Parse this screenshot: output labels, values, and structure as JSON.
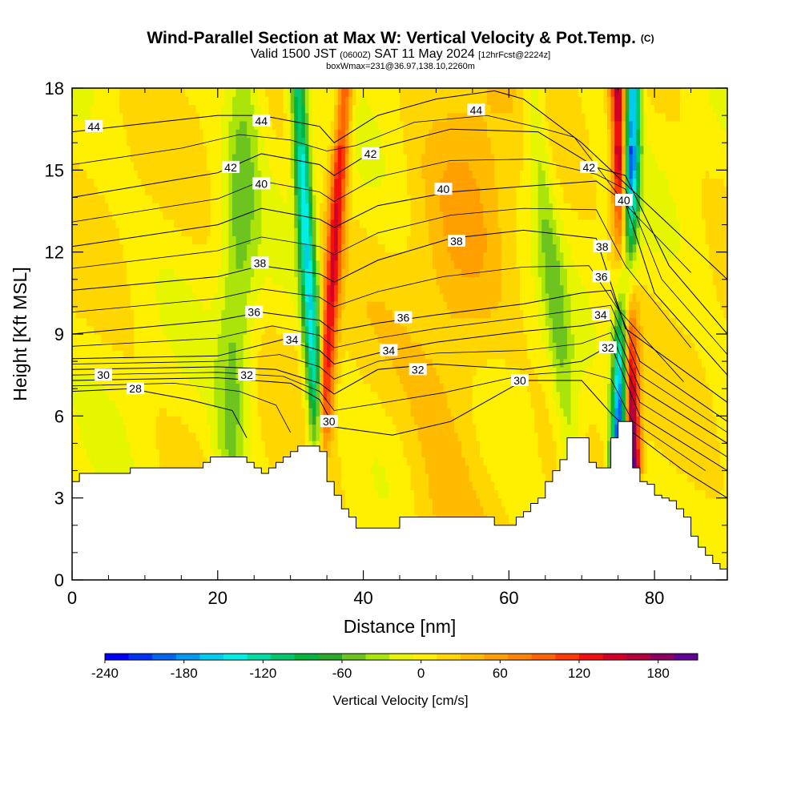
{
  "chart_data": {
    "type": "heatmap",
    "title": "Wind-Parallel Section at Max W: Vertical Velocity & Pot.Temp.",
    "title_mark": "(C)",
    "subtitle_main": "Valid 1500 JST",
    "subtitle_utc": "(0600Z)",
    "subtitle_date": "SAT 11 May 2024",
    "subtitle_fcst": "[12hrFcst@2224z]",
    "subtitle2": "boxWmax=231@36.97,138.10,2260m",
    "xlabel": "Distance [nm]",
    "ylabel": "Height [Kft MSL]",
    "xlim": [
      0,
      90
    ],
    "ylim": [
      0,
      18
    ],
    "x_ticks": [
      "0",
      "20",
      "40",
      "60",
      "80"
    ],
    "y_ticks": [
      "0",
      "3",
      "6",
      "9",
      "12",
      "15",
      "18"
    ],
    "colorbar": {
      "label": "Vertical Velocity [cm/s]",
      "range": [
        -240,
        210
      ],
      "tick_labels": [
        "-240",
        "-180",
        "-120",
        "-60",
        "0",
        "60",
        "120",
        "180"
      ],
      "colors": [
        "#0000ff",
        "#0033f5",
        "#0066f0",
        "#0099f0",
        "#00ccf0",
        "#00eee6",
        "#00dca6",
        "#00c86e",
        "#00b43c",
        "#2ca82a",
        "#6ec41e",
        "#aae40a",
        "#e6f500",
        "#fff000",
        "#ffd600",
        "#ffbb00",
        "#ffa000",
        "#ff8400",
        "#ff6400",
        "#ff3a00",
        "#f01010",
        "#d20028",
        "#b4003c",
        "#8c0064",
        "#640096"
      ]
    },
    "updrafts": [
      {
        "name": "",
        "peak_w": 130,
        "x_base": 34,
        "x_top": 37.5
      },
      {
        "name": "",
        "peak_w": 210,
        "x_base": 77,
        "x_top": 75
      }
    ],
    "downdrafts": [
      {
        "name": "",
        "peak_w": -150,
        "x_base": 34,
        "x_top": 31
      },
      {
        "name": "",
        "peak_w": -240,
        "x_base": 75,
        "x_top": 77
      }
    ],
    "terrain_profile": {
      "x": [
        0,
        1,
        2,
        3,
        4,
        5,
        6,
        7,
        8,
        9,
        10,
        11,
        12,
        13,
        14,
        15,
        16,
        17,
        18,
        19,
        20,
        21,
        22,
        23,
        24,
        25,
        26,
        27,
        28,
        29,
        30,
        31,
        32,
        33,
        34,
        35,
        36,
        37,
        38,
        39,
        40,
        41,
        42,
        43,
        44,
        45,
        46,
        47,
        48,
        49,
        50,
        51,
        52,
        53,
        54,
        55,
        56,
        57,
        58,
        59,
        60,
        61,
        62,
        63,
        64,
        65,
        66,
        67,
        68,
        69,
        70,
        71,
        72,
        73,
        74,
        75,
        76,
        77,
        78,
        79,
        80,
        81,
        82,
        83,
        84,
        85,
        86,
        87,
        88,
        89,
        90
      ],
      "z_kft": [
        3.6,
        3.9,
        3.9,
        3.9,
        3.9,
        3.9,
        3.9,
        3.9,
        4.1,
        4.1,
        4.1,
        4.1,
        4.1,
        4.1,
        4.1,
        4.1,
        4.1,
        4.1,
        4.3,
        4.5,
        4.5,
        4.5,
        4.5,
        4.5,
        4.3,
        4.1,
        3.9,
        4.1,
        4.3,
        4.5,
        4.7,
        4.9,
        4.9,
        4.9,
        4.7,
        3.6,
        3.1,
        2.6,
        2.3,
        1.9,
        1.9,
        1.9,
        1.9,
        1.9,
        1.9,
        2.3,
        2.3,
        2.3,
        2.3,
        2.3,
        2.3,
        2.3,
        2.3,
        2.3,
        2.3,
        2.3,
        2.3,
        2.3,
        2.0,
        2.0,
        2.0,
        2.3,
        2.5,
        2.8,
        3.0,
        3.6,
        4.0,
        4.4,
        5.2,
        5.2,
        5.2,
        4.3,
        4.1,
        4.1,
        5.2,
        5.8,
        5.8,
        4.1,
        3.6,
        3.5,
        3.1,
        3.0,
        2.9,
        2.6,
        2.3,
        1.6,
        1.2,
        0.9,
        0.6,
        0.4,
        0.4
      ]
    },
    "theta_contours": [
      {
        "label": "28",
        "pts": [
          [
            0,
            6.9
          ],
          [
            8,
            7.0
          ],
          [
            16,
            6.6
          ],
          [
            22,
            6.2
          ],
          [
            24,
            5.2
          ]
        ],
        "label_at": [
          8.7,
          7.0
        ]
      },
      {
        "label": "30",
        "pts": [
          [
            0,
            7.3
          ],
          [
            20,
            7.4
          ],
          [
            30,
            7.2
          ],
          [
            34,
            6.6
          ],
          [
            36,
            5.6
          ],
          [
            44,
            5.3
          ],
          [
            52,
            5.8
          ],
          [
            62,
            7.3
          ],
          [
            70,
            7.3
          ],
          [
            74,
            6.1
          ],
          [
            76,
            5.6
          ],
          [
            84,
            4.0
          ],
          [
            90,
            3.0
          ]
        ],
        "label_at": [
          4.3,
          7.5
        ]
      },
      {
        "label": "32",
        "pts": [
          [
            0,
            7.7
          ],
          [
            20,
            7.8
          ],
          [
            28,
            7.7
          ],
          [
            34,
            7.2
          ],
          [
            36,
            6.8
          ],
          [
            42,
            7.7
          ],
          [
            50,
            7.9
          ],
          [
            62,
            7.7
          ],
          [
            70,
            8.0
          ],
          [
            74,
            8.6
          ],
          [
            78,
            6.0
          ],
          [
            90,
            4.0
          ]
        ],
        "label_at": [
          24,
          7.5
        ]
      },
      {
        "label": "34",
        "pts": [
          [
            0,
            8.1
          ],
          [
            20,
            8.2
          ],
          [
            29,
            8.8
          ],
          [
            34,
            8.4
          ],
          [
            36,
            7.9
          ],
          [
            42,
            8.3
          ],
          [
            50,
            8.7
          ],
          [
            62,
            9.1
          ],
          [
            70,
            9.3
          ],
          [
            74,
            9.5
          ],
          [
            78,
            7.0
          ],
          [
            90,
            5.0
          ]
        ],
        "label_at": [
          30.2,
          8.8
        ]
      },
      {
        "label": "36",
        "pts": [
          [
            0,
            9.0
          ],
          [
            20,
            9.5
          ],
          [
            26,
            9.8
          ],
          [
            34,
            9.5
          ],
          [
            36,
            9.1
          ],
          [
            42,
            9.4
          ],
          [
            50,
            9.7
          ],
          [
            62,
            10.1
          ],
          [
            70,
            10.5
          ],
          [
            74,
            10.6
          ],
          [
            78,
            8.0
          ],
          [
            90,
            5.8
          ]
        ],
        "label_at": [
          25,
          9.8
        ]
      },
      {
        "label": "38",
        "pts": [
          [
            0,
            10.6
          ],
          [
            20,
            11.1
          ],
          [
            26,
            11.5
          ],
          [
            34,
            11.2
          ],
          [
            36,
            10.9
          ],
          [
            42,
            11.7
          ],
          [
            52,
            12.5
          ],
          [
            62,
            12.8
          ],
          [
            72,
            12.5
          ],
          [
            76,
            9.2
          ],
          [
            90,
            6.5
          ]
        ],
        "label_at": [
          52.8,
          12.4
        ]
      },
      {
        "label": "40",
        "pts": [
          [
            0,
            12.2
          ],
          [
            20,
            13.0
          ],
          [
            26,
            13.6
          ],
          [
            34,
            13.2
          ],
          [
            36,
            12.9
          ],
          [
            42,
            13.7
          ],
          [
            52,
            14.2
          ],
          [
            62,
            14.4
          ],
          [
            72,
            14.6
          ],
          [
            76,
            13.8
          ],
          [
            80,
            10.5
          ],
          [
            90,
            7.5
          ]
        ],
        "label_at": [
          51,
          14.3
        ]
      },
      {
        "label": "42",
        "pts": [
          [
            0,
            14.0
          ],
          [
            20,
            14.9
          ],
          [
            26,
            15.6
          ],
          [
            34,
            15.2
          ],
          [
            36,
            14.8
          ],
          [
            42,
            15.8
          ],
          [
            52,
            16.5
          ],
          [
            64,
            16.4
          ],
          [
            72,
            15.1
          ],
          [
            76,
            14.8
          ],
          [
            82,
            11.5
          ],
          [
            90,
            9.0
          ]
        ],
        "label_at": [
          41,
          15.6
        ]
      },
      {
        "label": "44",
        "pts": [
          [
            0,
            16.4
          ],
          [
            10,
            16.7
          ],
          [
            20,
            17.0
          ],
          [
            26,
            17.0
          ],
          [
            34,
            16.6
          ],
          [
            36,
            16.0
          ],
          [
            42,
            17.0
          ],
          [
            50,
            17.6
          ],
          [
            58,
            17.9
          ],
          [
            62,
            17.6
          ],
          [
            70,
            16.0
          ],
          [
            80,
            13.5
          ],
          [
            90,
            11.0
          ]
        ],
        "label_at": [
          3,
          16.6
        ]
      }
    ],
    "extra_contour_labels": [
      {
        "label": "44",
        "at": [
          26,
          16.8
        ]
      },
      {
        "label": "44",
        "at": [
          55.5,
          17.2
        ]
      },
      {
        "label": "42",
        "at": [
          21.8,
          15.1
        ]
      },
      {
        "label": "42",
        "at": [
          71,
          15.1
        ]
      },
      {
        "label": "40",
        "at": [
          26,
          14.5
        ]
      },
      {
        "label": "40",
        "at": [
          75.8,
          13.9
        ]
      },
      {
        "label": "38",
        "at": [
          25.8,
          11.6
        ]
      },
      {
        "label": "38",
        "at": [
          72.8,
          12.2
        ]
      },
      {
        "label": "36",
        "at": [
          45.5,
          9.6
        ]
      },
      {
        "label": "36",
        "at": [
          72.7,
          11.1
        ]
      },
      {
        "label": "34",
        "at": [
          43.5,
          8.4
        ]
      },
      {
        "label": "34",
        "at": [
          72.6,
          9.7
        ]
      },
      {
        "label": "32",
        "at": [
          47.5,
          7.7
        ]
      },
      {
        "label": "32",
        "at": [
          73.6,
          8.5
        ]
      },
      {
        "label": "30",
        "at": [
          61.5,
          7.3
        ]
      },
      {
        "label": "30",
        "at": [
          35.3,
          5.8
        ]
      }
    ]
  }
}
